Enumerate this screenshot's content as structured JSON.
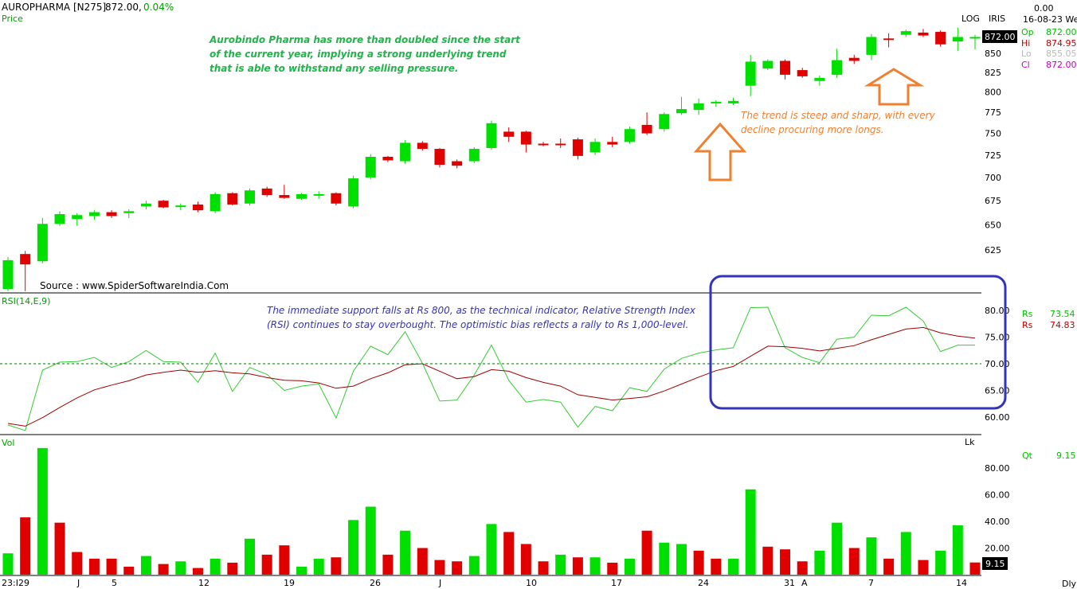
{
  "header": {
    "symbol": "AUROPHARMA [N275]",
    "last": "872.00,",
    "change": "0.04%",
    "price_label": "Price",
    "log_label": "LOG",
    "iris_label": "IRIS",
    "top_value": "0.00",
    "date": "16-08-23 We",
    "ohlc": [
      {
        "label": "Op",
        "value": "872.00",
        "color": "#00c000"
      },
      {
        "label": "Hi",
        "value": "874.95",
        "color": "#c00000"
      },
      {
        "label": "Lo",
        "value": "855.05",
        "color": "#b8b8b8"
      },
      {
        "label": "Cl",
        "value": "872.00",
        "color": "#c000c0"
      }
    ],
    "price_tag": "872.00"
  },
  "annotations": {
    "green_note": [
      "Aurobindo Pharma has more than doubled since the start",
      "of the current year, implying a strong underlying trend",
      "that is able to withstand any selling pressure."
    ],
    "orange_note": [
      "The trend is steep and sharp, with every",
      "decline procuring more longs."
    ],
    "blue_note": [
      "The immediate support falls at Rs 800, as the technical indicator, Relative Strength Index",
      "(RSI) continues to stay overbought. The optimistic bias reflects a rally to Rs 1,000-level."
    ],
    "source": "Source : www.SpiderSoftwareIndia.Com"
  },
  "rsi_panel": {
    "label": "RSI(14,E,9)",
    "legend": [
      {
        "label": "Rs",
        "value": "73.54",
        "color": "#00c000"
      },
      {
        "label": "Rs",
        "value": "74.83",
        "color": "#c00000"
      }
    ]
  },
  "vol_panel": {
    "label": "Vol",
    "lk_label": "Lk",
    "legend": {
      "label": "Qt",
      "value": "9.15"
    },
    "vol_tag": "9.15"
  },
  "footer": {
    "dly": "Dly"
  },
  "colors": {
    "up": "#00e000",
    "down": "#e00000",
    "rsi": "#33cc33",
    "rsi_signal": "#a00000",
    "blue_box": "#3333bb",
    "orange": "#f08030"
  },
  "chart_data": [
    {
      "type": "candlestick",
      "title": "AUROPHARMA [N275]",
      "ylabel": "Price",
      "scale": "log",
      "ylim": [
        600,
        890
      ],
      "yticks": [
        625,
        650,
        675,
        700,
        725,
        750,
        775,
        800,
        825,
        850
      ],
      "x_tick_labels": [
        "23:I29",
        "J",
        "5",
        "12",
        "19",
        "26",
        "J",
        "10",
        "17",
        "24",
        "31",
        "A",
        "7",
        "14"
      ],
      "candles": [
        {
          "o": 588,
          "h": 618,
          "l": 586,
          "c": 615
        },
        {
          "o": 621,
          "h": 624,
          "l": 586,
          "c": 611
        },
        {
          "o": 614,
          "h": 657,
          "l": 612,
          "c": 651
        },
        {
          "o": 651,
          "h": 664,
          "l": 649,
          "c": 661
        },
        {
          "o": 656,
          "h": 662,
          "l": 649,
          "c": 660
        },
        {
          "o": 659,
          "h": 665,
          "l": 655,
          "c": 663
        },
        {
          "o": 663,
          "h": 665,
          "l": 657,
          "c": 659
        },
        {
          "o": 662,
          "h": 666,
          "l": 657,
          "c": 664
        },
        {
          "o": 669,
          "h": 675,
          "l": 666,
          "c": 672
        },
        {
          "o": 675,
          "h": 676,
          "l": 667,
          "c": 668
        },
        {
          "o": 669,
          "h": 672,
          "l": 665,
          "c": 670
        },
        {
          "o": 671,
          "h": 674,
          "l": 663,
          "c": 665
        },
        {
          "o": 664,
          "h": 684,
          "l": 662,
          "c": 682
        },
        {
          "o": 683,
          "h": 684,
          "l": 670,
          "c": 671
        },
        {
          "o": 672,
          "h": 688,
          "l": 670,
          "c": 686
        },
        {
          "o": 688,
          "h": 690,
          "l": 679,
          "c": 681
        },
        {
          "o": 681,
          "h": 692,
          "l": 677,
          "c": 678
        },
        {
          "o": 677,
          "h": 683,
          "l": 676,
          "c": 682
        },
        {
          "o": 682,
          "h": 685,
          "l": 677,
          "c": 682
        },
        {
          "o": 683,
          "h": 684,
          "l": 670,
          "c": 672
        },
        {
          "o": 669,
          "h": 702,
          "l": 667,
          "c": 699
        },
        {
          "o": 700,
          "h": 726,
          "l": 698,
          "c": 723
        },
        {
          "o": 723,
          "h": 724,
          "l": 717,
          "c": 719
        },
        {
          "o": 718,
          "h": 742,
          "l": 715,
          "c": 739
        },
        {
          "o": 739,
          "h": 741,
          "l": 730,
          "c": 732
        },
        {
          "o": 732,
          "h": 733,
          "l": 711,
          "c": 714
        },
        {
          "o": 718,
          "h": 720,
          "l": 710,
          "c": 713
        },
        {
          "o": 718,
          "h": 734,
          "l": 716,
          "c": 732
        },
        {
          "o": 733,
          "h": 765,
          "l": 731,
          "c": 762
        },
        {
          "o": 752,
          "h": 757,
          "l": 740,
          "c": 746
        },
        {
          "o": 752,
          "h": 753,
          "l": 728,
          "c": 737
        },
        {
          "o": 738,
          "h": 740,
          "l": 735,
          "c": 737
        },
        {
          "o": 738,
          "h": 744,
          "l": 733,
          "c": 737
        },
        {
          "o": 743,
          "h": 745,
          "l": 720,
          "c": 724
        },
        {
          "o": 728,
          "h": 744,
          "l": 725,
          "c": 740
        },
        {
          "o": 740,
          "h": 746,
          "l": 734,
          "c": 737
        },
        {
          "o": 740,
          "h": 758,
          "l": 738,
          "c": 755
        },
        {
          "o": 760,
          "h": 775,
          "l": 748,
          "c": 750
        },
        {
          "o": 755,
          "h": 775,
          "l": 752,
          "c": 773
        },
        {
          "o": 774,
          "h": 794,
          "l": 772,
          "c": 779
        },
        {
          "o": 778,
          "h": 792,
          "l": 772,
          "c": 786
        },
        {
          "o": 786,
          "h": 790,
          "l": 782,
          "c": 788
        },
        {
          "o": 786,
          "h": 793,
          "l": 784,
          "c": 789
        },
        {
          "o": 808,
          "h": 848,
          "l": 795,
          "c": 839
        },
        {
          "o": 830,
          "h": 842,
          "l": 828,
          "c": 840
        },
        {
          "o": 840,
          "h": 842,
          "l": 816,
          "c": 822
        },
        {
          "o": 828,
          "h": 831,
          "l": 818,
          "c": 820
        },
        {
          "o": 814,
          "h": 821,
          "l": 808,
          "c": 818
        },
        {
          "o": 822,
          "h": 856,
          "l": 818,
          "c": 841
        },
        {
          "o": 844,
          "h": 848,
          "l": 836,
          "c": 840
        },
        {
          "o": 848,
          "h": 876,
          "l": 841,
          "c": 872
        },
        {
          "o": 870,
          "h": 877,
          "l": 858,
          "c": 868
        },
        {
          "o": 875,
          "h": 882,
          "l": 872,
          "c": 880
        },
        {
          "o": 878,
          "h": 883,
          "l": 872,
          "c": 874
        },
        {
          "o": 879,
          "h": 881,
          "l": 859,
          "c": 862
        },
        {
          "o": 866,
          "h": 885,
          "l": 853,
          "c": 872
        },
        {
          "o": 872,
          "h": 875,
          "l": 855,
          "c": 872
        }
      ]
    },
    {
      "type": "line",
      "title": "RSI(14,E,9)",
      "ylim": [
        55,
        85
      ],
      "yticks": [
        60,
        65,
        70,
        75,
        80
      ],
      "reference_line": 70,
      "series": [
        {
          "name": "Rs",
          "color": "#33cc33",
          "values": [
            58.5,
            57.5,
            68.8,
            70.3,
            70.4,
            71.2,
            69.3,
            70.4,
            72.5,
            70.4,
            70.3,
            66.5,
            72.0,
            64.8,
            69.3,
            68.0,
            65.0,
            65.8,
            66.2,
            59.8,
            68.6,
            73.3,
            71.7,
            76.0,
            70.1,
            63.0,
            63.2,
            67.9,
            73.5,
            66.9,
            62.8,
            63.3,
            62.8,
            58.1,
            62.0,
            61.2,
            65.5,
            64.8,
            69.0,
            71.0,
            72.0,
            72.6,
            73.0,
            80.5,
            80.6,
            73.0,
            71.2,
            70.2,
            74.6,
            75.0,
            79.1,
            79.0,
            80.6,
            78.0,
            72.3,
            73.5,
            73.5
          ]
        },
        {
          "name": "Rs",
          "color": "#a00000",
          "values": [
            58.8,
            58.3,
            59.9,
            61.8,
            63.6,
            65.1,
            66.0,
            66.8,
            67.9,
            68.4,
            68.8,
            68.4,
            68.7,
            68.3,
            68.1,
            67.4,
            66.9,
            66.8,
            66.4,
            65.4,
            65.8,
            67.2,
            68.3,
            69.8,
            70.0,
            68.6,
            67.2,
            67.6,
            68.9,
            68.6,
            67.4,
            66.5,
            65.8,
            64.2,
            63.7,
            63.2,
            63.5,
            63.8,
            64.9,
            66.2,
            67.5,
            68.7,
            69.5,
            71.4,
            73.3,
            73.2,
            72.9,
            72.4,
            72.9,
            73.4,
            74.5,
            75.5,
            76.5,
            76.8,
            75.8,
            75.2,
            74.8
          ]
        }
      ]
    },
    {
      "type": "bar",
      "title": "Vol",
      "ylim": [
        0,
        100
      ],
      "yticks": [
        20,
        40,
        60,
        80
      ],
      "values": [
        16,
        43,
        95,
        39,
        17,
        12,
        12,
        6,
        14,
        8,
        10,
        5,
        12,
        9,
        27,
        15,
        22,
        6,
        12,
        13,
        41,
        51,
        15,
        33,
        20,
        11,
        10,
        14,
        38,
        32,
        23,
        10,
        15,
        13,
        13,
        9,
        12,
        33,
        24,
        23,
        18,
        12,
        12,
        64,
        21,
        19,
        10,
        18,
        39,
        20,
        28,
        12,
        32,
        11,
        18,
        37,
        9.15
      ],
      "colors": [
        "up",
        "down",
        "up",
        "down",
        "down",
        "down",
        "down",
        "down",
        "up",
        "down",
        "up",
        "down",
        "up",
        "down",
        "up",
        "down",
        "down",
        "up",
        "up",
        "down",
        "up",
        "up",
        "down",
        "up",
        "down",
        "down",
        "down",
        "up",
        "up",
        "down",
        "down",
        "down",
        "up",
        "down",
        "up",
        "down",
        "up",
        "down",
        "up",
        "up",
        "down",
        "down",
        "up",
        "up",
        "down",
        "down",
        "down",
        "up",
        "up",
        "down",
        "up",
        "down",
        "up",
        "down",
        "up",
        "up",
        "down"
      ]
    }
  ]
}
